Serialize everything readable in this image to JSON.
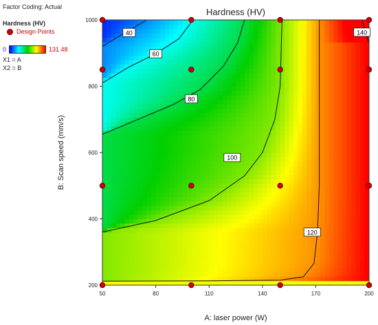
{
  "factor_coding": "Factor Coding: Actual",
  "legend": {
    "response_label": "Hardness (HV)",
    "design_points_label": "Design Points",
    "ramp_min": "0",
    "ramp_max": "131.48",
    "x1_label": "X1 = A",
    "x2_label": "X2 = B"
  },
  "chart_data": {
    "type": "heatmap",
    "title": "Hardness (HV)",
    "xlabel": "A: laser power (W)",
    "ylabel": "B: Scan speed (mm/s)",
    "xlim": [
      50,
      200
    ],
    "ylim": [
      200,
      1000
    ],
    "x_ticks": [
      50,
      80,
      110,
      140,
      170,
      200
    ],
    "y_ticks": [
      200,
      400,
      600,
      800,
      1000
    ],
    "color_range": [
      0,
      131.48
    ],
    "colors": [
      "#0000ff",
      "#00ffff",
      "#00d000",
      "#ffff00",
      "#ff0000"
    ],
    "contours": [
      {
        "level": "40",
        "points": [
          [
            50,
            920
          ],
          [
            60,
            953
          ],
          [
            68,
            978
          ],
          [
            75,
            1000
          ]
        ],
        "label_at": [
          65,
          962
        ]
      },
      {
        "level": "60",
        "points": [
          [
            50,
            810
          ],
          [
            65,
            858
          ],
          [
            80,
            898
          ],
          [
            93,
            943
          ],
          [
            101,
            1000
          ]
        ],
        "label_at": [
          80,
          898
        ]
      },
      {
        "level": "80",
        "points": [
          [
            50,
            655
          ],
          [
            70,
            700
          ],
          [
            90,
            745
          ],
          [
            105,
            790
          ],
          [
            118,
            860
          ],
          [
            126,
            930
          ],
          [
            130,
            1000
          ]
        ],
        "label_at": [
          100,
          762
        ]
      },
      {
        "level": "100",
        "points": [
          [
            50,
            360
          ],
          [
            80,
            395
          ],
          [
            110,
            455
          ],
          [
            130,
            530
          ],
          [
            140,
            600
          ],
          [
            147,
            700
          ],
          [
            150,
            800
          ],
          [
            151,
            1000
          ]
        ],
        "label_at": [
          123,
          585
        ]
      },
      {
        "level": "120",
        "points": [
          [
            50,
            212
          ],
          [
            110,
            213
          ],
          [
            150,
            215
          ],
          [
            163,
            225
          ],
          [
            169,
            265
          ],
          [
            171,
            360
          ],
          [
            172,
            500
          ],
          [
            172,
            700
          ],
          [
            172,
            1000
          ]
        ],
        "label_at": [
          168,
          360
        ]
      },
      {
        "level": "140",
        "points": [
          [
            196,
            1000
          ],
          [
            198,
            960
          ],
          [
            200,
            930
          ]
        ],
        "label_at": [
          196,
          963
        ]
      }
    ],
    "design_points": [
      [
        50,
        1000
      ],
      [
        100,
        1000
      ],
      [
        150,
        1000
      ],
      [
        200,
        1000
      ],
      [
        50,
        850
      ],
      [
        100,
        850
      ],
      [
        150,
        850
      ],
      [
        200,
        850
      ],
      [
        50,
        500
      ],
      [
        100,
        500
      ],
      [
        150,
        500
      ],
      [
        200,
        500
      ],
      [
        50,
        200
      ],
      [
        100,
        200
      ],
      [
        150,
        200
      ],
      [
        200,
        200
      ]
    ]
  }
}
